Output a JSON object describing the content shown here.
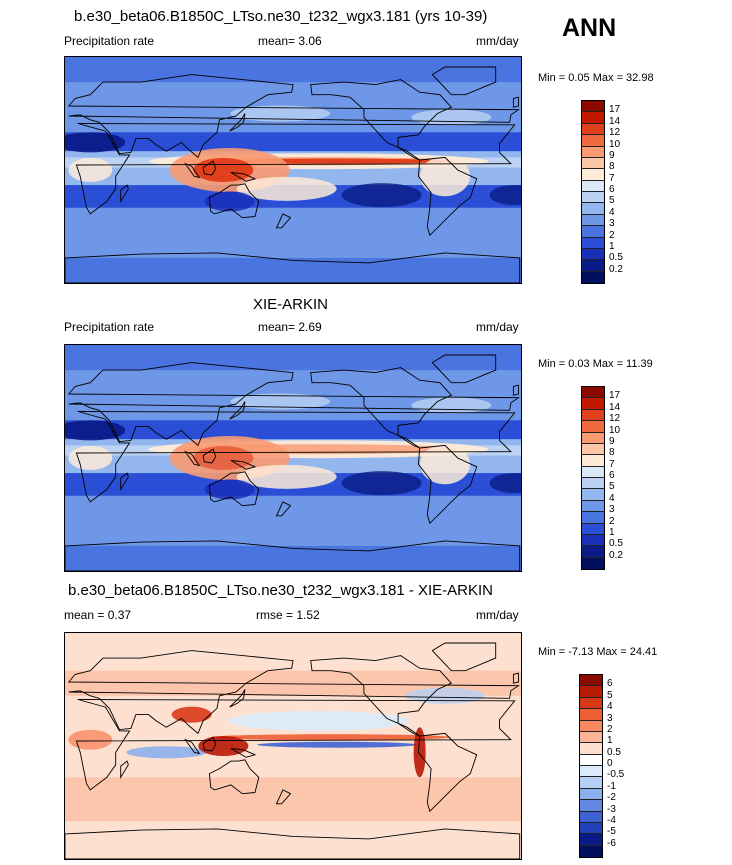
{
  "season": "ANN",
  "panels": [
    {
      "title": "b.e30_beta06.B1850C_LTso.ne30_t232_wgx3.181 (yrs 10-39)",
      "left": "Precipitation rate",
      "center": "mean=   3.06",
      "right": "mm/day",
      "minmax": "Min =   0.05 Max =  32.98",
      "palette": "abs",
      "labels": [
        "17",
        "14",
        "12",
        "10",
        "9",
        "8",
        "7",
        "6",
        "5",
        "4",
        "3",
        "2",
        "1",
        "0.5",
        "0.2"
      ]
    },
    {
      "title": "XIE-ARKIN",
      "left": "Precipitation rate",
      "center": "mean=   2.69",
      "right": "mm/day",
      "minmax": "Min =   0.03 Max =  11.39",
      "palette": "abs",
      "labels": [
        "17",
        "14",
        "12",
        "10",
        "9",
        "8",
        "7",
        "6",
        "5",
        "4",
        "3",
        "2",
        "1",
        "0.5",
        "0.2"
      ]
    },
    {
      "title": "b.e30_beta06.B1850C_LTso.ne30_t232_wgx3.181 - XIE-ARKIN",
      "left": "mean =   0.37",
      "center": "rmse =   1.52",
      "right": "mm/day",
      "minmax": "Min =  -7.13 Max =  24.41",
      "palette": "diff",
      "labels": [
        "6",
        "5",
        "4",
        "3",
        "2",
        "1",
        "0.5",
        "0",
        "-0.5",
        "-1",
        "-2",
        "-3",
        "-4",
        "-5",
        "-6"
      ]
    }
  ],
  "colors": {
    "abs": [
      "#8a0a00",
      "#c21800",
      "#e0401c",
      "#f06a40",
      "#f89a72",
      "#fcc7a6",
      "#fdebd8",
      "#dbe8f8",
      "#bcd2f4",
      "#93b6ee",
      "#6f97e8",
      "#4a74e0",
      "#2a4fd6",
      "#1a2fb8",
      "#0a1a86",
      "#000f5e"
    ],
    "diff": [
      "#8a0a00",
      "#b81a06",
      "#d83a18",
      "#ee5e34",
      "#f78a62",
      "#fbb496",
      "#fde0d0",
      "#ffffff",
      "#dcebfb",
      "#b6d0f5",
      "#8cb0ed",
      "#6488e2",
      "#3e62d4",
      "#2440b8",
      "#0a1a86",
      "#000f5e"
    ]
  }
}
